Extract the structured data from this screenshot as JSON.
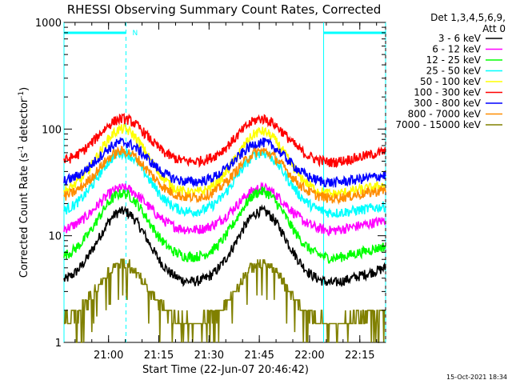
{
  "chart_data": {
    "type": "line",
    "title": "RHESSI Observing Summary Count Rates, Corrected",
    "xlabel": "Start Time (22-Jun-07 20:46:42)",
    "ylabel_main": "Corrected Count Rate (s",
    "ylabel_sup1": "-1",
    "ylabel_mid": " detector",
    "ylabel_sup2": "-1",
    "ylabel_end": ")",
    "yscale": "log",
    "ylim": [
      1,
      1000
    ],
    "xlim_minutes": [
      0,
      96
    ],
    "ytick_labels": [
      "1",
      "10",
      "100",
      "1000"
    ],
    "ytick_values": [
      1,
      10,
      100,
      1000
    ],
    "xtick_labels": [
      "21:00",
      "21:15",
      "21:30",
      "21:45",
      "22:00",
      "22:15"
    ],
    "xtick_minutes": [
      13.3,
      28.3,
      43.3,
      58.3,
      73.3,
      88.3
    ],
    "legend_header": [
      "Det 1,3,4,5,6,9,",
      "Att 0"
    ],
    "footer_date": "15-Oct-2021 18:34",
    "night_label": "N",
    "night_intervals_minutes": [
      [
        0,
        18.5
      ],
      [
        77.5,
        96
      ]
    ],
    "series": [
      {
        "name": "3 - 6 keV",
        "color": "#000000",
        "peaks": [
          17,
          17
        ],
        "base": 3.5,
        "lowstart": 5
      },
      {
        "name": "6 - 12 keV",
        "color": "#ff00ff",
        "peaks": [
          28,
          28
        ],
        "base": 11,
        "lowstart": 14
      },
      {
        "name": "12 - 25 keV",
        "color": "#00ff00",
        "peaks": [
          25,
          26
        ],
        "base": 6,
        "lowstart": 8
      },
      {
        "name": "25 - 50 keV",
        "color": "#00ffff",
        "peaks": [
          60,
          60
        ],
        "base": 16,
        "lowstart": 19
      },
      {
        "name": "50 - 100 keV",
        "color": "#ffff00",
        "peaks": [
          100,
          95
        ],
        "base": 24,
        "lowstart": 30
      },
      {
        "name": "100 - 300 keV",
        "color": "#ff0000",
        "peaks": [
          125,
          125
        ],
        "base": 48,
        "lowstart": 62
      },
      {
        "name": "300 - 800 keV",
        "color": "#0000ff",
        "peaks": [
          75,
          75
        ],
        "base": 31,
        "lowstart": 37
      },
      {
        "name": "800 - 7000 keV",
        "color": "#ff8c00",
        "peaks": [
          62,
          62
        ],
        "base": 22,
        "lowstart": 27
      },
      {
        "name": "7000 - 15000 keV",
        "color": "#808000",
        "peaks": [
          5.5,
          5.5
        ],
        "base": 1.5,
        "lowstart": 2
      }
    ]
  }
}
